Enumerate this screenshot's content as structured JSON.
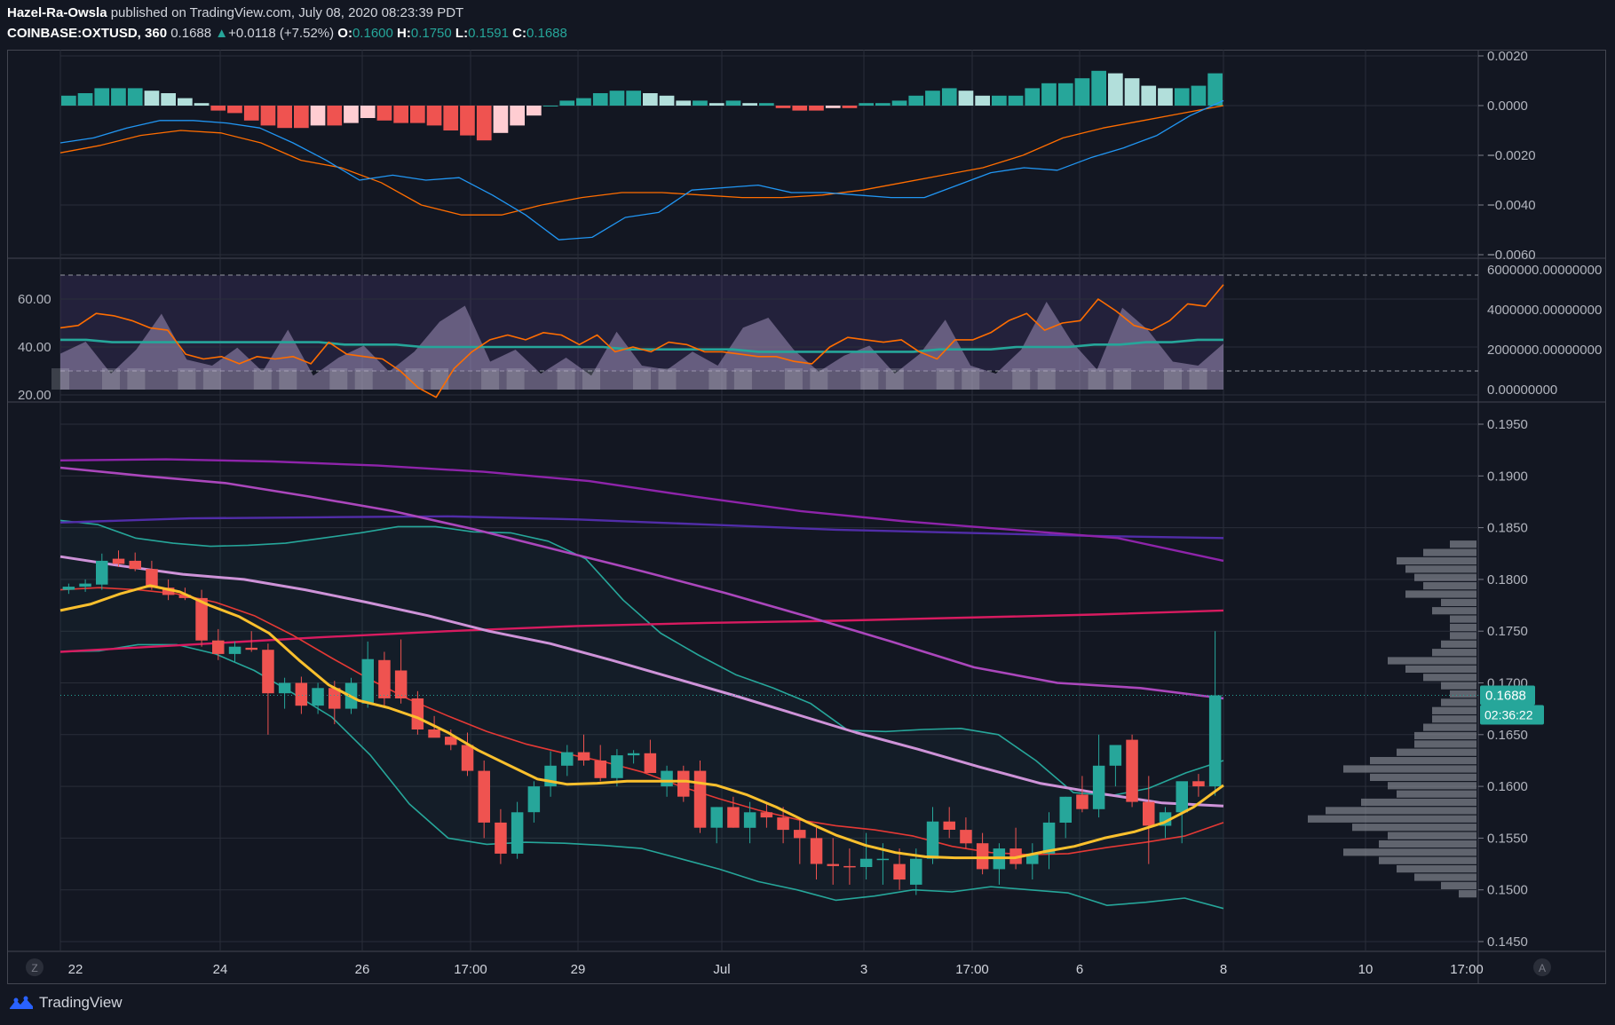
{
  "header": {
    "author": "Hazel-Ra-Owsla",
    "published": "published on TradingView.com, July 08, 2020 08:23:39 PDT",
    "symbol": "COINBASE:OXTUSD, 360",
    "last": "0.1688",
    "change_arrow": "▲",
    "change": "+0.0118 (+7.52%)",
    "o_label": "O:",
    "o_value": "0.1600",
    "h_label": "H:",
    "h_value": "0.1750",
    "l_label": "L:",
    "l_value": "0.1591",
    "c_label": "C:",
    "c_value": "0.1688"
  },
  "footer": {
    "brand": "TradingView",
    "brand_icon": "tradingview-logo-icon"
  },
  "controls": {
    "z_button": "Z",
    "a_button": "A"
  },
  "colors": {
    "background": "#131722",
    "bull": "#26a69a",
    "bear": "#ef5350",
    "grid": "#2a2e39",
    "text": "#b2b5be"
  },
  "chart_data": [
    {
      "type": "bar",
      "panel": "macd",
      "ylim": [
        -0.006,
        0.0022
      ],
      "yticks": [
        "0.0020",
        "0.0000",
        "−0.0020",
        "−0.0040",
        "−0.0060"
      ],
      "histogram": [
        0.0004,
        0.0005,
        0.0007,
        0.0007,
        0.0007,
        0.0006,
        0.0005,
        0.0003,
        0.0001,
        -0.0002,
        -0.0003,
        -0.0006,
        -0.0008,
        -0.0009,
        -0.0009,
        -0.0008,
        -0.0008,
        -0.0007,
        -0.0005,
        -0.0006,
        -0.0007,
        -0.0007,
        -0.0008,
        -0.001,
        -0.0012,
        -0.0014,
        -0.0011,
        -0.0008,
        -0.0004,
        0,
        0.0002,
        0.0003,
        0.0005,
        0.0006,
        0.0006,
        0.0005,
        0.0004,
        0.0002,
        0.0002,
        0.0001,
        0.0002,
        0.0001,
        0.0001,
        -0.0001,
        -0.0002,
        -0.0002,
        -0.0001,
        -0.0001,
        0.0001,
        0.0001,
        0.0002,
        0.0004,
        0.0006,
        0.0007,
        0.0006,
        0.0004,
        0.0004,
        0.0004,
        0.0007,
        0.0009,
        0.0009,
        0.0011,
        0.0014,
        0.0013,
        0.0011,
        0.0008,
        0.0007,
        0.0007,
        0.0008,
        0.0013
      ],
      "macd": [
        -0.0015,
        -0.0013,
        -0.0009,
        -0.0006,
        -0.0006,
        -0.0007,
        -0.0009,
        -0.0015,
        -0.0022,
        -0.003,
        -0.0028,
        -0.003,
        -0.0029,
        -0.0036,
        -0.0044,
        -0.0054,
        -0.0053,
        -0.0045,
        -0.0043,
        -0.0034,
        -0.0033,
        -0.0032,
        -0.0035,
        -0.0035,
        -0.0036,
        -0.0037,
        -0.0037,
        -0.0032,
        -0.0027,
        -0.0025,
        -0.0026,
        -0.0021,
        -0.0017,
        -0.0012,
        -0.0004,
        0.0002
      ],
      "signal": [
        -0.0019,
        -0.0016,
        -0.0012,
        -0.001,
        -0.0011,
        -0.0015,
        -0.0022,
        -0.0025,
        -0.0031,
        -0.004,
        -0.0044,
        -0.0044,
        -0.004,
        -0.0037,
        -0.0035,
        -0.0035,
        -0.0036,
        -0.0037,
        -0.0037,
        -0.0036,
        -0.0034,
        -0.0031,
        -0.0028,
        -0.0025,
        -0.002,
        -0.0013,
        -0.0009,
        -0.0006,
        -0.0003,
        0.0
      ]
    },
    {
      "type": "line",
      "panel": "rsi-volume",
      "ylim_left": [
        16,
        72
      ],
      "yticks_left": [
        "60.00",
        "40.00",
        "20.00"
      ],
      "yticks_right": [
        "6000000.00000000",
        "4000000.00000000",
        "2000000.00000000",
        "0.00000000"
      ],
      "bands": [
        30,
        70
      ],
      "rsi": [
        48,
        49,
        54,
        53,
        51,
        48,
        47,
        37,
        35,
        36,
        33,
        36,
        35,
        36,
        33,
        42,
        37,
        36,
        35,
        30,
        23,
        19,
        31,
        38,
        43,
        45,
        43,
        46,
        45,
        41,
        45,
        38,
        40,
        38,
        42,
        41,
        38,
        38,
        37,
        36,
        36,
        34,
        33,
        40,
        44,
        43,
        42,
        43,
        38,
        35,
        43,
        43,
        46,
        51,
        54,
        47,
        50,
        51,
        60,
        55,
        49,
        47,
        51,
        58,
        57,
        66
      ],
      "rsi_ma": [
        43,
        43,
        42,
        42,
        42,
        42,
        42,
        42,
        42,
        42,
        42,
        41,
        41,
        41,
        40,
        40,
        40,
        40,
        40,
        40,
        40,
        40,
        39,
        39,
        39,
        39,
        39,
        38,
        38,
        38,
        38,
        38,
        38,
        38,
        39,
        39,
        39,
        40,
        40,
        40,
        41,
        41,
        42,
        42,
        43,
        43
      ],
      "volume": [
        1.8,
        2.4,
        0.8,
        2.0,
        3.8,
        1.5,
        1.2,
        2.1,
        0.9,
        3.0,
        0.7,
        1.6,
        2.2,
        0.9,
        1.9,
        3.4,
        4.2,
        1.4,
        2.0,
        0.8,
        1.6,
        0.7,
        2.9,
        1.2,
        1.0,
        1.9,
        1.2,
        3.1,
        3.6,
        2.0,
        0.9,
        1.7,
        2.2,
        0.8,
        1.8,
        3.5,
        1.2,
        0.8,
        2.0,
        4.4,
        2.4,
        1.0,
        4.1,
        3.0,
        1.4,
        1.2,
        2.3
      ]
    },
    {
      "type": "candlestick",
      "panel": "price",
      "ylim": [
        0.144,
        0.196
      ],
      "yticks": [
        "0.1950",
        "0.1900",
        "0.1850",
        "0.1800",
        "0.1750",
        "0.1700",
        "0.1650",
        "0.1600",
        "0.1550",
        "0.1500",
        "0.1450"
      ],
      "xticks": [
        "22",
        "24",
        "26",
        "17:00",
        "29",
        "Jul",
        "3",
        "17:00",
        "6",
        "8",
        "10",
        "17:00"
      ],
      "last_price_label": "0.1688",
      "countdown_label": "02:36:22",
      "ohlc": [
        [
          0.179,
          0.1796,
          0.1786,
          0.1793
        ],
        [
          0.1793,
          0.18,
          0.1788,
          0.1796
        ],
        [
          0.1795,
          0.1825,
          0.179,
          0.1818
        ],
        [
          0.182,
          0.1828,
          0.1812,
          0.1815
        ],
        [
          0.1818,
          0.1826,
          0.1808,
          0.181
        ],
        [
          0.181,
          0.1818,
          0.179,
          0.1792
        ],
        [
          0.1792,
          0.18,
          0.178,
          0.1785
        ],
        [
          0.1785,
          0.1792,
          0.178,
          0.1782
        ],
        [
          0.1782,
          0.179,
          0.1735,
          0.1741
        ],
        [
          0.1741,
          0.1752,
          0.1722,
          0.1728
        ],
        [
          0.1728,
          0.174,
          0.172,
          0.1735
        ],
        [
          0.1734,
          0.175,
          0.173,
          0.1732
        ],
        [
          0.1732,
          0.1738,
          0.165,
          0.169
        ],
        [
          0.169,
          0.1705,
          0.1675,
          0.17
        ],
        [
          0.17,
          0.1706,
          0.167,
          0.1678
        ],
        [
          0.1678,
          0.17,
          0.167,
          0.1695
        ],
        [
          0.1695,
          0.1702,
          0.166,
          0.1675
        ],
        [
          0.1675,
          0.1705,
          0.167,
          0.17
        ],
        [
          0.168,
          0.174,
          0.1676,
          0.1723
        ],
        [
          0.1722,
          0.173,
          0.1676,
          0.1685
        ],
        [
          0.1712,
          0.1742,
          0.168,
          0.1685
        ],
        [
          0.1685,
          0.1692,
          0.165,
          0.1655
        ],
        [
          0.1655,
          0.1668,
          0.1648,
          0.1647
        ],
        [
          0.1648,
          0.1655,
          0.1635,
          0.164
        ],
        [
          0.164,
          0.1652,
          0.161,
          0.1615
        ],
        [
          0.1615,
          0.1625,
          0.155,
          0.1565
        ],
        [
          0.1565,
          0.1578,
          0.1525,
          0.1535
        ],
        [
          0.1535,
          0.1585,
          0.153,
          0.1575
        ],
        [
          0.1575,
          0.1605,
          0.1565,
          0.16
        ],
        [
          0.16,
          0.1634,
          0.159,
          0.162
        ],
        [
          0.162,
          0.164,
          0.161,
          0.1633
        ],
        [
          0.1633,
          0.165,
          0.162,
          0.1625
        ],
        [
          0.1625,
          0.164,
          0.1605,
          0.1608
        ],
        [
          0.1608,
          0.1636,
          0.16,
          0.163
        ],
        [
          0.163,
          0.1635,
          0.1622,
          0.1632
        ],
        [
          0.1632,
          0.1645,
          0.1615,
          0.1613
        ],
        [
          0.16,
          0.162,
          0.159,
          0.1615
        ],
        [
          0.1615,
          0.162,
          0.1585,
          0.159
        ],
        [
          0.1615,
          0.1625,
          0.1555,
          0.156
        ],
        [
          0.156,
          0.158,
          0.1545,
          0.158
        ],
        [
          0.158,
          0.159,
          0.156,
          0.156
        ],
        [
          0.156,
          0.1585,
          0.1545,
          0.1575
        ],
        [
          0.1575,
          0.1585,
          0.156,
          0.157
        ],
        [
          0.157,
          0.158,
          0.1545,
          0.1558
        ],
        [
          0.1558,
          0.157,
          0.1525,
          0.155
        ],
        [
          0.155,
          0.156,
          0.151,
          0.1525
        ],
        [
          0.1525,
          0.155,
          0.1505,
          0.1523
        ],
        [
          0.1523,
          0.154,
          0.1505,
          0.1522
        ],
        [
          0.1522,
          0.1555,
          0.151,
          0.153
        ],
        [
          0.153,
          0.1545,
          0.1505,
          0.153
        ],
        [
          0.1525,
          0.154,
          0.15,
          0.151
        ],
        [
          0.1505,
          0.154,
          0.1495,
          0.153
        ],
        [
          0.153,
          0.158,
          0.1525,
          0.1566
        ],
        [
          0.1566,
          0.158,
          0.155,
          0.1558
        ],
        [
          0.1558,
          0.157,
          0.154,
          0.1545
        ],
        [
          0.1545,
          0.1555,
          0.1515,
          0.152
        ],
        [
          0.152,
          0.1545,
          0.1505,
          0.154
        ],
        [
          0.154,
          0.156,
          0.152,
          0.1525
        ],
        [
          0.1525,
          0.1545,
          0.151,
          0.1535
        ],
        [
          0.1535,
          0.1575,
          0.152,
          0.1565
        ],
        [
          0.1565,
          0.159,
          0.155,
          0.159
        ],
        [
          0.1592,
          0.161,
          0.1575,
          0.1578
        ],
        [
          0.1578,
          0.165,
          0.157,
          0.162
        ],
        [
          0.162,
          0.164,
          0.16,
          0.164
        ],
        [
          0.1645,
          0.165,
          0.158,
          0.1585
        ],
        [
          0.1585,
          0.161,
          0.1525,
          0.1562
        ],
        [
          0.1562,
          0.158,
          0.155,
          0.1575
        ],
        [
          0.1575,
          0.16,
          0.1545,
          0.1605
        ],
        [
          0.1605,
          0.1612,
          0.159,
          0.16
        ],
        [
          0.16,
          0.175,
          0.1591,
          0.1688
        ]
      ],
      "ema_yellow": [
        0.177,
        0.1776,
        0.1786,
        0.1794,
        0.1788,
        0.1775,
        0.1764,
        0.1748,
        0.1722,
        0.1698,
        0.1683,
        0.1676,
        0.1666,
        0.1652,
        0.1635,
        0.1621,
        0.1607,
        0.1602,
        0.1603,
        0.1605,
        0.1605,
        0.1605,
        0.1601,
        0.1592,
        0.158,
        0.1566,
        0.1553,
        0.1543,
        0.1536,
        0.1532,
        0.1531,
        0.1531,
        0.1531,
        0.1537,
        0.1542,
        0.155,
        0.1556,
        0.1565,
        0.158,
        0.1601
      ],
      "sma_red": [
        0.179,
        0.1792,
        0.179,
        0.1786,
        0.1778,
        0.1765,
        0.1746,
        0.1724,
        0.1703,
        0.1684,
        0.1668,
        0.1653,
        0.1641,
        0.1632,
        0.1624,
        0.1614,
        0.16,
        0.1588,
        0.1577,
        0.1568,
        0.1562,
        0.1558,
        0.1552,
        0.1542,
        0.1536,
        0.1534,
        0.1535,
        0.1541,
        0.1546,
        0.1552,
        0.1565
      ],
      "bb_upper": [
        0.1857,
        0.1853,
        0.184,
        0.1835,
        0.1832,
        0.1833,
        0.1835,
        0.184,
        0.1845,
        0.1851,
        0.1851,
        0.1846,
        0.1845,
        0.1837,
        0.182,
        0.178,
        0.1748,
        0.1727,
        0.1708,
        0.1695,
        0.168,
        0.1654,
        0.1653,
        0.1655,
        0.1656,
        0.165,
        0.1625,
        0.1594,
        0.1591,
        0.1598,
        0.1613,
        0.1625
      ],
      "bb_lower": [
        0.173,
        0.1731,
        0.1737,
        0.1737,
        0.1728,
        0.1712,
        0.169,
        0.1667,
        0.163,
        0.1583,
        0.155,
        0.1544,
        0.1546,
        0.1545,
        0.1543,
        0.154,
        0.153,
        0.152,
        0.1508,
        0.15,
        0.149,
        0.1494,
        0.15,
        0.1498,
        0.1503,
        0.15,
        0.1497,
        0.1485,
        0.1488,
        0.1492,
        0.1482
      ],
      "ma_lavender": [
        0.1822,
        0.1813,
        0.1805,
        0.18,
        0.179,
        0.1778,
        0.1765,
        0.175,
        0.1738,
        0.1722,
        0.1705,
        0.1688,
        0.167,
        0.1652,
        0.1636,
        0.1619,
        0.1603,
        0.1593,
        0.1584,
        0.1581
      ],
      "ma_magenta": [
        0.1908,
        0.19,
        0.1893,
        0.188,
        0.1866,
        0.1848,
        0.1828,
        0.1808,
        0.1787,
        0.1764,
        0.174,
        0.1715,
        0.17,
        0.1695,
        0.1685
      ],
      "ma_violet": [
        0.1915,
        0.1916,
        0.1914,
        0.191,
        0.1904,
        0.1895,
        0.188,
        0.1866,
        0.1856,
        0.1848,
        0.184,
        0.1818
      ],
      "ma_indigo": [
        0.1855,
        0.1859,
        0.186,
        0.1861,
        0.1858,
        0.1853,
        0.1848,
        0.1845,
        0.1842,
        0.184
      ],
      "ma_crimson": [
        0.173,
        0.1737,
        0.1744,
        0.175,
        0.1755,
        0.1758,
        0.176,
        0.1763,
        0.1766,
        0.177
      ],
      "volume_profile": [
        0.3,
        0.6,
        0.9,
        0.8,
        0.7,
        0.6,
        0.8,
        0.4,
        0.5,
        0.3,
        0.3,
        0.3,
        0.4,
        0.5,
        1.0,
        0.8,
        0.6,
        0.4,
        0.3,
        0.4,
        0.5,
        0.5,
        0.6,
        0.7,
        0.7,
        0.9,
        1.2,
        1.5,
        1.2,
        1.0,
        0.9,
        1.3,
        1.7,
        1.9,
        1.4,
        1.0,
        1.1,
        1.5,
        1.1,
        0.9,
        0.7,
        0.4,
        0.2
      ]
    }
  ]
}
